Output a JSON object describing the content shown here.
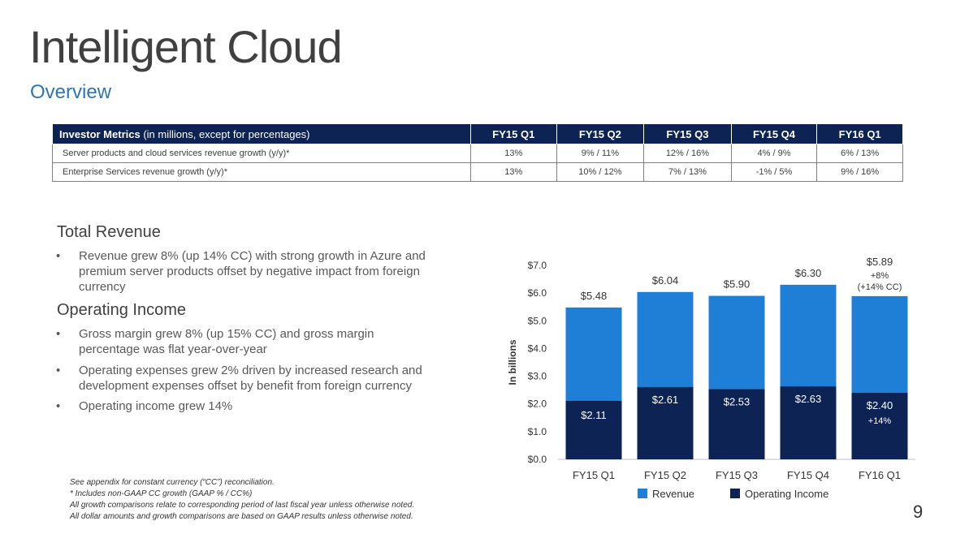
{
  "title": "Intelligent Cloud",
  "subtitle": "Overview",
  "metrics": {
    "header_bold": "Investor Metrics",
    "header_rest": " (in millions, except for percentages)",
    "columns": [
      "FY15 Q1",
      "FY15 Q2",
      "FY15 Q3",
      "FY15 Q4",
      "FY16 Q1"
    ],
    "rows": [
      {
        "label": "Server products and cloud services revenue growth (y/y)*",
        "values": [
          "13%",
          "9% / 11%",
          "12% / 16%",
          "4% / 9%",
          "6% / 13%"
        ]
      },
      {
        "label": "Enterprise Services revenue growth (y/y)*",
        "values": [
          "13%",
          "10% / 12%",
          "7% / 13%",
          "-1% / 5%",
          "9% / 16%"
        ]
      }
    ]
  },
  "sections": {
    "revenue_heading": "Total Revenue",
    "revenue_bullet_1a": "Revenue grew 8% (up 14% CC) with strong growth in Azure and",
    "revenue_bullet_1b": "premium server products offset by negative impact from foreign",
    "revenue_bullet_1c": "currency",
    "opinc_heading": "Operating Income",
    "opinc_bullet_1a": "Gross margin grew 8% (up 15% CC) and gross margin",
    "opinc_bullet_1b": "percentage was flat year-over-year",
    "opinc_bullet_2a": "Operating expenses grew 2% driven by increased research and",
    "opinc_bullet_2b": "development expenses offset by benefit from foreign currency",
    "opinc_bullet_3": "Operating income grew 14%",
    "bullet_char": "•"
  },
  "footnotes": {
    "line1": "See appendix for constant currency (“CC”) reconciliation.",
    "line2": "* Includes non-GAAP CC growth (GAAP % / CC%)",
    "line3": "All growth comparisons relate to corresponding period of last fiscal year unless otherwise noted.",
    "line4": "All dollar amounts and growth comparisons are based on GAAP results unless otherwise noted."
  },
  "page_number": "9",
  "colors": {
    "revenue": "#1f7fd6",
    "operating_income": "#0d2354",
    "header_bg": "#0d2354",
    "subtitle": "#2e75b6"
  },
  "chart_data": {
    "type": "bar",
    "stacking": "overlay",
    "ylabel": "In billions",
    "ylim": [
      0,
      7
    ],
    "ytick_labels": [
      "$0.0",
      "$1.0",
      "$2.0",
      "$3.0",
      "$4.0",
      "$5.0",
      "$6.0",
      "$7.0"
    ],
    "categories": [
      "FY15 Q1",
      "FY15 Q2",
      "FY15 Q3",
      "FY15 Q4",
      "FY16 Q1"
    ],
    "series": [
      {
        "name": "Revenue",
        "values": [
          5.48,
          6.04,
          5.9,
          6.3,
          5.89
        ],
        "labels": [
          "$5.48",
          "$6.04",
          "$5.90",
          "$6.30",
          "$5.89"
        ]
      },
      {
        "name": "Operating Income",
        "values": [
          2.11,
          2.61,
          2.53,
          2.63,
          2.4
        ],
        "labels": [
          "$2.11",
          "$2.61",
          "$2.53",
          "$2.63",
          "$2.40"
        ]
      }
    ],
    "annotations": {
      "revenue_last": [
        "+8%",
        "(+14% CC)"
      ],
      "opinc_last": "+14%"
    },
    "legend": "bottom"
  }
}
